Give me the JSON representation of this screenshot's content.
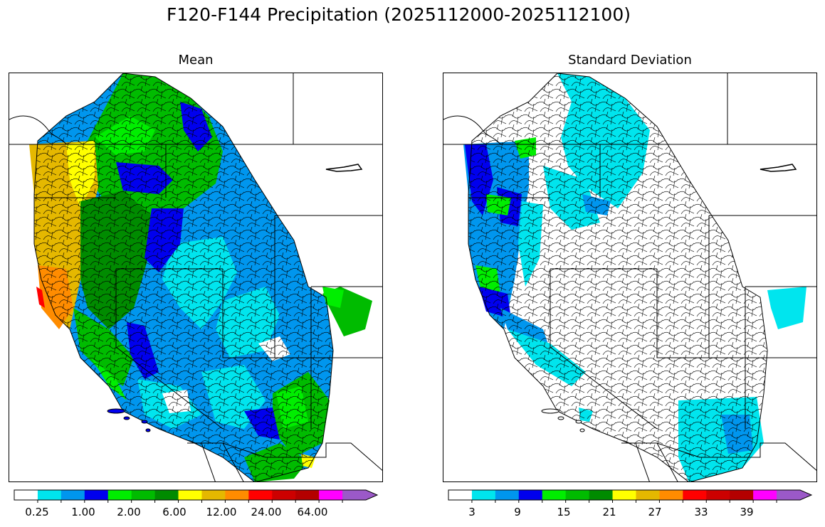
{
  "figure": {
    "title": "F120-F144 Precipitation (2025112000-2025112100)"
  },
  "panels": [
    {
      "id": "mean",
      "title": "Mean",
      "colorbar": {
        "colors": [
          "#ffffff",
          "#00e5ee",
          "#0096ee",
          "#0000ee",
          "#00ee00",
          "#00bb00",
          "#008b00",
          "#ffff00",
          "#e5b800",
          "#ff8c00",
          "#ff0000",
          "#cd0000",
          "#b40000",
          "#ff00ff",
          "#9b59c8"
        ],
        "tick_labels": [
          "0.25",
          "1.00",
          "2.00",
          "6.00",
          "12.00",
          "24.00",
          "64.00"
        ],
        "extend": "max"
      }
    },
    {
      "id": "stddev",
      "title": "Standard Deviation",
      "colorbar": {
        "colors": [
          "#ffffff",
          "#00e5ee",
          "#0096ee",
          "#0000ee",
          "#00ee00",
          "#00bb00",
          "#008b00",
          "#ffff00",
          "#e5b800",
          "#ff8c00",
          "#ff0000",
          "#cd0000",
          "#b40000",
          "#ff00ff",
          "#9b59c8"
        ],
        "tick_labels": [
          "3",
          "9",
          "15",
          "21",
          "27",
          "33",
          "39"
        ],
        "extend": "max"
      }
    }
  ]
}
